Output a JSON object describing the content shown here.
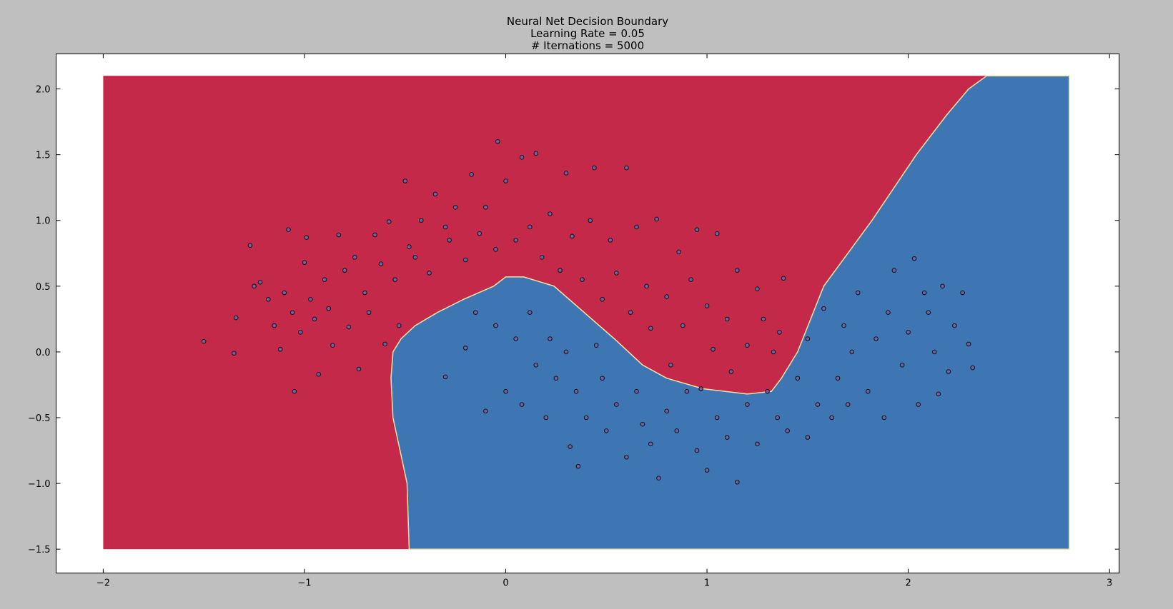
{
  "chart_data": {
    "type": "scatter",
    "title": [
      "Neural Net Decision Boundary",
      "Learning Rate = 0.05",
      "# Iternations = 5000"
    ],
    "xlim": [
      -2.234,
      3.048
    ],
    "ylim": [
      -1.682,
      2.267
    ],
    "xticks": [
      {
        "value": -2,
        "label": "−2"
      },
      {
        "value": -1,
        "label": "−1"
      },
      0,
      1,
      2,
      3
    ],
    "yticks": [
      {
        "value": -1.5,
        "label": "−1.5"
      },
      {
        "value": -1.0,
        "label": "−1.0"
      },
      {
        "value": -0.5,
        "label": "−0.5"
      },
      {
        "value": 0.0,
        "label": "0.0"
      },
      0.5,
      {
        "value": 1.0,
        "label": "1.0"
      },
      1.5,
      {
        "value": 2.0,
        "label": "2.0"
      }
    ],
    "extent": {
      "x": [
        -2,
        2.8
      ],
      "y": [
        -1.5,
        2.1
      ]
    },
    "background_color": "#c4294a",
    "region": {
      "color": "#3e76b3",
      "edge_color": "#f3e4a6",
      "x": [
        -0.48,
        -0.49,
        -0.56,
        -0.57,
        -0.56,
        -0.52,
        -0.45,
        -0.34,
        -0.21,
        -0.06,
        0.0,
        0.09,
        0.24,
        0.39,
        0.54,
        0.68,
        0.8,
        0.98,
        1.2,
        1.32,
        1.37,
        1.45,
        1.58,
        1.82,
        2.04,
        2.19,
        2.3,
        2.39,
        2.8,
        2.8
      ],
      "y": [
        -1.5,
        -1.0,
        -0.5,
        -0.2,
        0.0,
        0.1,
        0.2,
        0.3,
        0.4,
        0.5,
        0.57,
        0.57,
        0.5,
        0.3,
        0.1,
        -0.1,
        -0.2,
        -0.28,
        -0.32,
        -0.3,
        -0.2,
        0.0,
        0.5,
        1.0,
        1.5,
        1.8,
        2.0,
        2.1,
        2.1,
        -1.5
      ]
    },
    "color": "#7060a8",
    "x": [
      -1.5,
      -1.35,
      -1.34,
      -1.27,
      -1.25,
      -1.22,
      -1.18,
      -1.15,
      -1.12,
      -1.1,
      -1.08,
      -1.06,
      -1.05,
      -1.02,
      -1.0,
      -0.99,
      -0.97,
      -0.95,
      -0.93,
      -0.9,
      -0.88,
      -0.86,
      -0.83,
      -0.8,
      -0.78,
      -0.75,
      -0.73,
      -0.7,
      -0.68,
      -0.65,
      -0.62,
      -0.6,
      -0.58,
      -0.55,
      -0.53,
      -0.5,
      -0.48,
      -0.45,
      -0.42,
      -0.38,
      -0.35,
      -0.3,
      -0.28,
      -0.25,
      -0.2,
      -0.17,
      -0.13,
      -0.1,
      -0.05,
      -0.04,
      0.0,
      0.05,
      0.08,
      0.12,
      0.15,
      0.18,
      0.22,
      0.27,
      0.3,
      0.33,
      0.38,
      0.42,
      0.44,
      0.48,
      0.52,
      0.55,
      0.6,
      0.62,
      0.65,
      0.7,
      0.72,
      0.75,
      0.8,
      0.82,
      0.86,
      0.88,
      0.92,
      0.95,
      0.97,
      1.0,
      1.03,
      1.05,
      1.1,
      1.12,
      1.15,
      1.2,
      1.25,
      1.28,
      1.33,
      1.36,
      1.38,
      -0.3,
      -0.2,
      -0.15,
      -0.1,
      -0.05,
      0.0,
      0.05,
      0.08,
      0.12,
      0.15,
      0.2,
      0.22,
      0.25,
      0.3,
      0.32,
      0.35,
      0.36,
      0.4,
      0.45,
      0.48,
      0.5,
      0.55,
      0.6,
      0.65,
      0.68,
      0.72,
      0.76,
      0.8,
      0.85,
      0.9,
      0.95,
      1.0,
      1.05,
      1.1,
      1.15,
      1.2,
      1.25,
      1.3,
      1.35,
      1.4,
      1.45,
      1.5,
      1.55,
      1.58,
      1.62,
      1.65,
      1.68,
      1.72,
      1.75,
      1.8,
      1.84,
      1.88,
      1.9,
      1.93,
      1.97,
      2.0,
      2.03,
      2.05,
      2.08,
      2.1,
      2.13,
      2.17,
      2.2,
      2.23,
      2.27,
      2.3,
      2.32,
      1.5,
      1.7,
      2.15
    ],
    "values": [
      0.08,
      -0.01,
      0.26,
      0.81,
      0.5,
      0.53,
      0.4,
      0.2,
      0.02,
      0.45,
      0.93,
      0.3,
      -0.3,
      0.15,
      0.68,
      0.87,
      0.4,
      0.25,
      -0.17,
      0.55,
      0.33,
      0.05,
      0.89,
      0.62,
      0.19,
      0.72,
      -0.13,
      0.45,
      0.3,
      0.89,
      0.67,
      0.06,
      0.99,
      0.55,
      0.2,
      1.3,
      0.8,
      0.72,
      1.0,
      0.6,
      1.2,
      0.95,
      0.85,
      1.1,
      0.7,
      1.35,
      0.9,
      1.1,
      0.78,
      1.6,
      1.3,
      0.85,
      1.48,
      0.95,
      1.51,
      0.72,
      1.05,
      0.62,
      1.36,
      0.88,
      0.55,
      1.0,
      1.4,
      0.4,
      0.85,
      0.6,
      1.4,
      0.3,
      0.95,
      0.5,
      0.18,
      1.01,
      0.42,
      -0.1,
      0.76,
      0.2,
      0.55,
      0.93,
      -0.28,
      0.35,
      0.02,
      0.9,
      0.25,
      -0.15,
      0.62,
      0.05,
      0.48,
      0.25,
      0.0,
      0.15,
      0.56,
      -0.19,
      0.03,
      0.3,
      -0.45,
      0.2,
      -0.3,
      0.1,
      -0.4,
      0.3,
      -0.1,
      -0.5,
      0.1,
      -0.2,
      0.0,
      -0.72,
      -0.3,
      -0.87,
      -0.5,
      0.05,
      -0.2,
      -0.6,
      -0.4,
      -0.8,
      -0.3,
      -0.55,
      -0.7,
      -0.96,
      -0.45,
      -0.6,
      -0.3,
      -0.75,
      -0.9,
      -0.5,
      -0.65,
      -0.99,
      -0.4,
      -0.7,
      -0.3,
      -0.5,
      -0.6,
      -0.2,
      -0.65,
      -0.4,
      0.33,
      -0.5,
      -0.2,
      0.2,
      0.0,
      0.45,
      -0.3,
      0.1,
      -0.5,
      0.3,
      0.62,
      -0.1,
      0.15,
      0.71,
      -0.4,
      0.45,
      0.3,
      0.0,
      0.5,
      -0.15,
      0.2,
      0.45,
      0.06,
      -0.12,
      0.1,
      -0.4,
      -0.32
    ]
  }
}
